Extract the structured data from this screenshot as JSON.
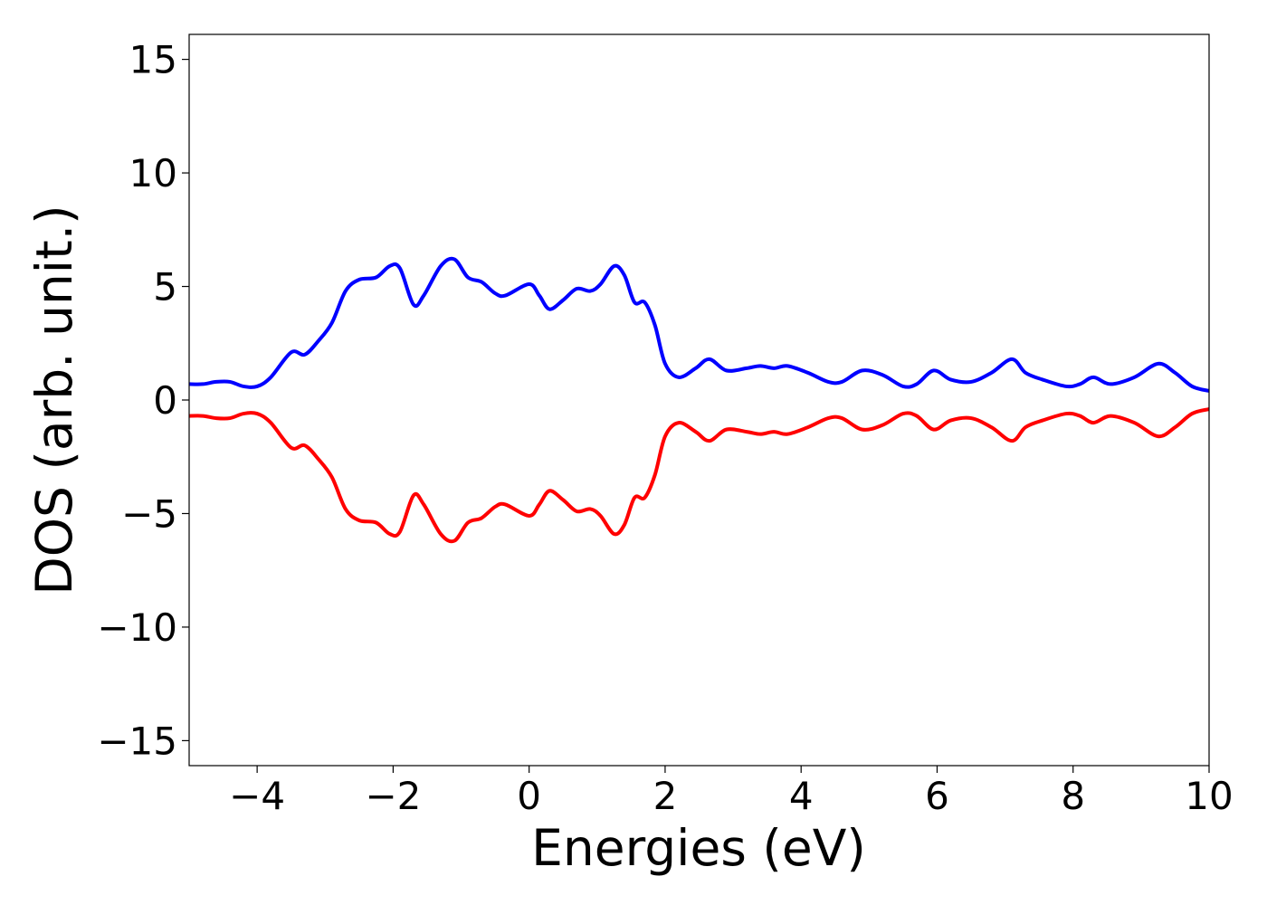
{
  "chart_data": {
    "type": "line",
    "title": "",
    "xlabel": "Energies (eV)",
    "ylabel": "DOS (arb. unit.)",
    "xlim": [
      -5,
      10
    ],
    "ylim": [
      -16.1,
      16.1
    ],
    "grid": false,
    "legend": "none",
    "xticks": [
      -4,
      -2,
      0,
      2,
      4,
      6,
      8,
      10
    ],
    "yticks": [
      15,
      10,
      5,
      0,
      -5,
      -10,
      -15
    ],
    "xtick_labels": [
      "−4",
      "−2",
      "0",
      "2",
      "4",
      "6",
      "8",
      "10"
    ],
    "ytick_labels": [
      "15",
      "10",
      "5",
      "0",
      "−5",
      "−10",
      "−15"
    ],
    "series": [
      {
        "color": "#0000ff",
        "x": [
          -5.0,
          -4.8,
          -4.6,
          -4.4,
          -4.2,
          -4.0,
          -3.8,
          -3.5,
          -3.3,
          -3.1,
          -2.9,
          -2.7,
          -2.5,
          -2.25,
          -2.05,
          -1.9,
          -1.7,
          -1.55,
          -1.3,
          -1.1,
          -0.9,
          -0.7,
          -0.5,
          -0.35,
          0.0,
          0.15,
          0.3,
          0.5,
          0.7,
          0.9,
          1.05,
          1.25,
          1.4,
          1.55,
          1.7,
          1.85,
          2.0,
          2.2,
          2.45,
          2.65,
          2.9,
          3.2,
          3.4,
          3.6,
          3.8,
          4.1,
          4.4,
          4.6,
          4.9,
          5.2,
          5.5,
          5.7,
          5.95,
          6.2,
          6.5,
          6.8,
          7.1,
          7.3,
          7.55,
          7.9,
          8.1,
          8.3,
          8.55,
          8.9,
          9.25,
          9.5,
          9.75,
          10.0
        ],
        "y": [
          0.7,
          0.7,
          0.8,
          0.8,
          0.6,
          0.6,
          1.0,
          2.1,
          2.0,
          2.6,
          3.4,
          4.8,
          5.3,
          5.4,
          5.9,
          5.8,
          4.2,
          4.6,
          5.9,
          6.2,
          5.4,
          5.2,
          4.7,
          4.6,
          5.1,
          4.6,
          4.0,
          4.4,
          4.9,
          4.8,
          5.1,
          5.9,
          5.5,
          4.3,
          4.3,
          3.3,
          1.6,
          1.0,
          1.4,
          1.8,
          1.3,
          1.4,
          1.5,
          1.4,
          1.5,
          1.2,
          0.8,
          0.8,
          1.3,
          1.1,
          0.6,
          0.7,
          1.3,
          0.9,
          0.8,
          1.2,
          1.8,
          1.2,
          0.9,
          0.6,
          0.7,
          1.0,
          0.7,
          1.0,
          1.6,
          1.2,
          0.6,
          0.4
        ]
      },
      {
        "color": "#ff0000",
        "x": [
          -5.0,
          -4.8,
          -4.6,
          -4.4,
          -4.2,
          -4.0,
          -3.8,
          -3.5,
          -3.3,
          -3.1,
          -2.9,
          -2.7,
          -2.5,
          -2.25,
          -2.05,
          -1.9,
          -1.7,
          -1.55,
          -1.3,
          -1.1,
          -0.9,
          -0.7,
          -0.5,
          -0.35,
          0.0,
          0.15,
          0.3,
          0.5,
          0.7,
          0.9,
          1.05,
          1.25,
          1.4,
          1.55,
          1.7,
          1.85,
          2.0,
          2.2,
          2.45,
          2.65,
          2.9,
          3.2,
          3.4,
          3.6,
          3.8,
          4.1,
          4.4,
          4.6,
          4.9,
          5.2,
          5.5,
          5.7,
          5.95,
          6.2,
          6.5,
          6.8,
          7.1,
          7.3,
          7.55,
          7.9,
          8.1,
          8.3,
          8.55,
          8.9,
          9.25,
          9.5,
          9.75,
          10.0
        ],
        "y": [
          -0.7,
          -0.7,
          -0.8,
          -0.8,
          -0.6,
          -0.6,
          -1.0,
          -2.1,
          -2.0,
          -2.6,
          -3.4,
          -4.8,
          -5.3,
          -5.4,
          -5.9,
          -5.8,
          -4.2,
          -4.6,
          -5.9,
          -6.2,
          -5.4,
          -5.2,
          -4.7,
          -4.6,
          -5.1,
          -4.6,
          -4.0,
          -4.4,
          -4.9,
          -4.8,
          -5.1,
          -5.9,
          -5.5,
          -4.3,
          -4.3,
          -3.3,
          -1.6,
          -1.0,
          -1.4,
          -1.8,
          -1.3,
          -1.4,
          -1.5,
          -1.4,
          -1.5,
          -1.2,
          -0.8,
          -0.8,
          -1.3,
          -1.1,
          -0.6,
          -0.7,
          -1.3,
          -0.9,
          -0.8,
          -1.2,
          -1.8,
          -1.2,
          -0.9,
          -0.6,
          -0.7,
          -1.0,
          -0.7,
          -1.0,
          -1.6,
          -1.2,
          -0.6,
          -0.4
        ]
      }
    ]
  }
}
